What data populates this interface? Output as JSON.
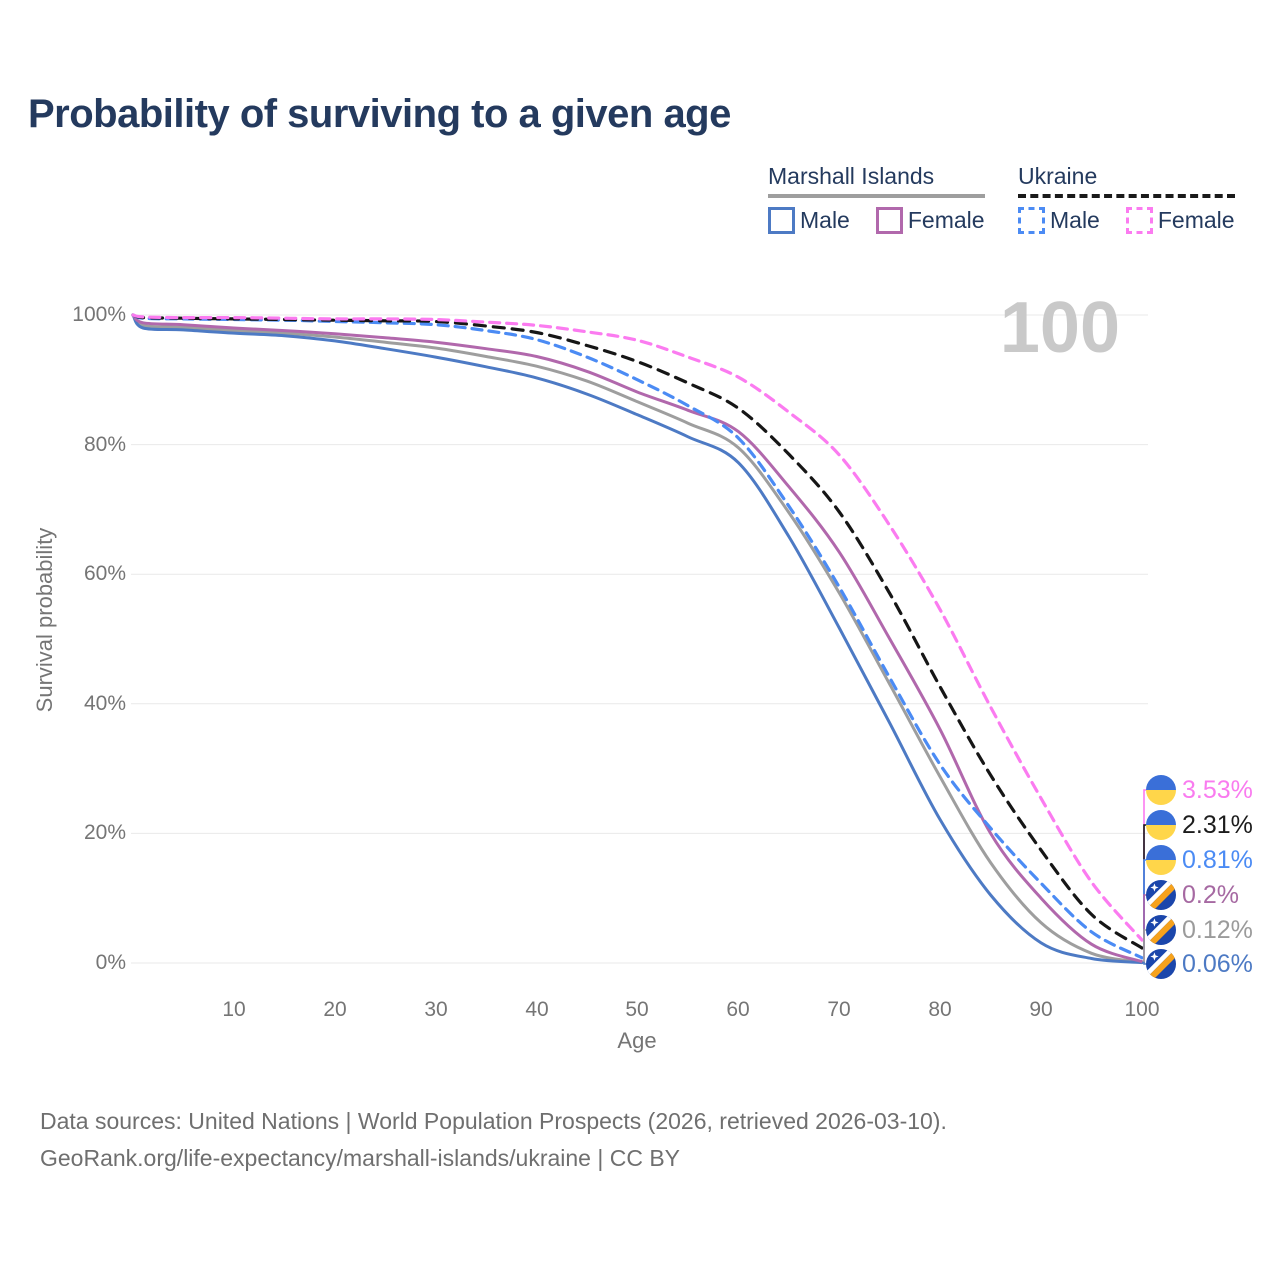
{
  "title": "Probability of surviving to a given age",
  "watermark": "100",
  "legend": {
    "groups": [
      {
        "name": "Marshall Islands",
        "line_style": "solid",
        "underline_color": "#9e9e9e",
        "items": [
          {
            "label": "Male",
            "color": "#4d7ac4"
          },
          {
            "label": "Female",
            "color": "#b168ac"
          }
        ]
      },
      {
        "name": "Ukraine",
        "line_style": "dashed",
        "underline_color": "#1a1a1a",
        "items": [
          {
            "label": "Male",
            "color": "#4b8bf4"
          },
          {
            "label": "Female",
            "color": "#fb7bf0"
          }
        ]
      }
    ]
  },
  "axes": {
    "y_title": "Survival probability",
    "x_title": "Age",
    "y_ticks": [
      "100%",
      "80%",
      "60%",
      "40%",
      "20%",
      "0%"
    ],
    "x_ticks": [
      "10",
      "20",
      "30",
      "40",
      "50",
      "60",
      "70",
      "80",
      "90",
      "100"
    ]
  },
  "endpoint_labels": [
    {
      "value": "3.53%",
      "color": "#f97bef",
      "flag": "ukraine"
    },
    {
      "value": "2.31%",
      "color": "#1c1c1c",
      "flag": "ukraine"
    },
    {
      "value": "0.81%",
      "color": "#4b8bf4",
      "flag": "ukraine"
    },
    {
      "value": "0.2%",
      "color": "#a669a2",
      "flag": "marshall-islands"
    },
    {
      "value": "0.12%",
      "color": "#9b9b9b",
      "flag": "marshall-islands"
    },
    {
      "value": "0.06%",
      "color": "#4d7ac4",
      "flag": "marshall-islands"
    }
  ],
  "footer": {
    "line1": "Data sources: United Nations | World Population Prospects (2026, retrieved 2026-03-10).",
    "line2": "GeoRank.org/life-expectancy/marshall-islands/ukraine | CC BY"
  },
  "chart_data": {
    "type": "line",
    "title": "Probability of surviving to a given age",
    "xlabel": "Age",
    "ylabel": "Survival probability",
    "xlim": [
      0,
      100
    ],
    "ylim": [
      0,
      100
    ],
    "grid": true,
    "legend_position": "top-right",
    "x": [
      0,
      1,
      5,
      10,
      15,
      20,
      25,
      30,
      35,
      40,
      45,
      50,
      55,
      60,
      65,
      70,
      75,
      80,
      85,
      90,
      95,
      100
    ],
    "series": [
      {
        "name": "Marshall Islands Male",
        "country": "Marshall Islands",
        "sex": "Male",
        "style": "solid",
        "color": "#4d7ac4",
        "end_label": "0.06%",
        "values": [
          100,
          98.0,
          97.7,
          97.2,
          96.8,
          96.0,
          94.8,
          93.5,
          92.0,
          90.3,
          87.8,
          84.6,
          81.2,
          77.2,
          65.8,
          51.7,
          37.0,
          22.1,
          10.5,
          3.1,
          0.7,
          0.06
        ]
      },
      {
        "name": "Marshall Islands Female",
        "country": "Marshall Islands",
        "sex": "Female",
        "style": "solid",
        "color": "#b168ac",
        "end_label": "0.2%",
        "values": [
          100,
          98.8,
          98.5,
          98.0,
          97.6,
          97.1,
          96.5,
          95.8,
          94.8,
          93.6,
          91.3,
          88.1,
          85.3,
          82.0,
          73.5,
          63.4,
          50.0,
          36.0,
          20.0,
          10.0,
          2.9,
          0.2
        ]
      },
      {
        "name": "Marshall Islands Both sexes",
        "country": "Marshall Islands",
        "sex": "Both",
        "style": "solid",
        "color": "#9e9e9e",
        "end_label": "0.12%",
        "values": [
          100,
          98.4,
          98.1,
          97.6,
          97.2,
          96.6,
          95.8,
          94.9,
          93.6,
          92.1,
          89.8,
          86.6,
          83.3,
          79.5,
          69.5,
          57.1,
          43.0,
          28.7,
          15.5,
          6.2,
          1.5,
          0.12
        ]
      },
      {
        "name": "Ukraine Male",
        "country": "Ukraine",
        "sex": "Male",
        "style": "dashed",
        "color": "#4b8bf4",
        "end_label": "0.81%",
        "values": [
          100,
          99.5,
          99.4,
          99.3,
          99.2,
          99.0,
          98.8,
          98.5,
          97.6,
          96.2,
          93.5,
          90.0,
          86.0,
          81.0,
          70.5,
          58.0,
          44.0,
          30.6,
          20.8,
          12.3,
          4.8,
          0.81
        ]
      },
      {
        "name": "Ukraine Female",
        "country": "Ukraine",
        "sex": "Female",
        "style": "dashed",
        "color": "#fb7bf0",
        "end_label": "3.53%",
        "values": [
          100,
          99.7,
          99.6,
          99.6,
          99.5,
          99.4,
          99.4,
          99.3,
          98.9,
          98.4,
          97.4,
          96.1,
          93.5,
          90.4,
          85.0,
          78.4,
          67.5,
          54.5,
          39.5,
          25.4,
          12.5,
          3.53
        ]
      },
      {
        "name": "Ukraine Both sexes",
        "country": "Ukraine",
        "sex": "Both",
        "style": "dashed",
        "color": "#161616",
        "end_label": "2.31%",
        "values": [
          100,
          99.6,
          99.5,
          99.4,
          99.3,
          99.2,
          99.1,
          99.0,
          98.3,
          97.3,
          95.3,
          92.8,
          89.5,
          85.6,
          78.5,
          69.6,
          57.0,
          42.6,
          29.0,
          17.4,
          7.5,
          2.31
        ]
      }
    ]
  }
}
